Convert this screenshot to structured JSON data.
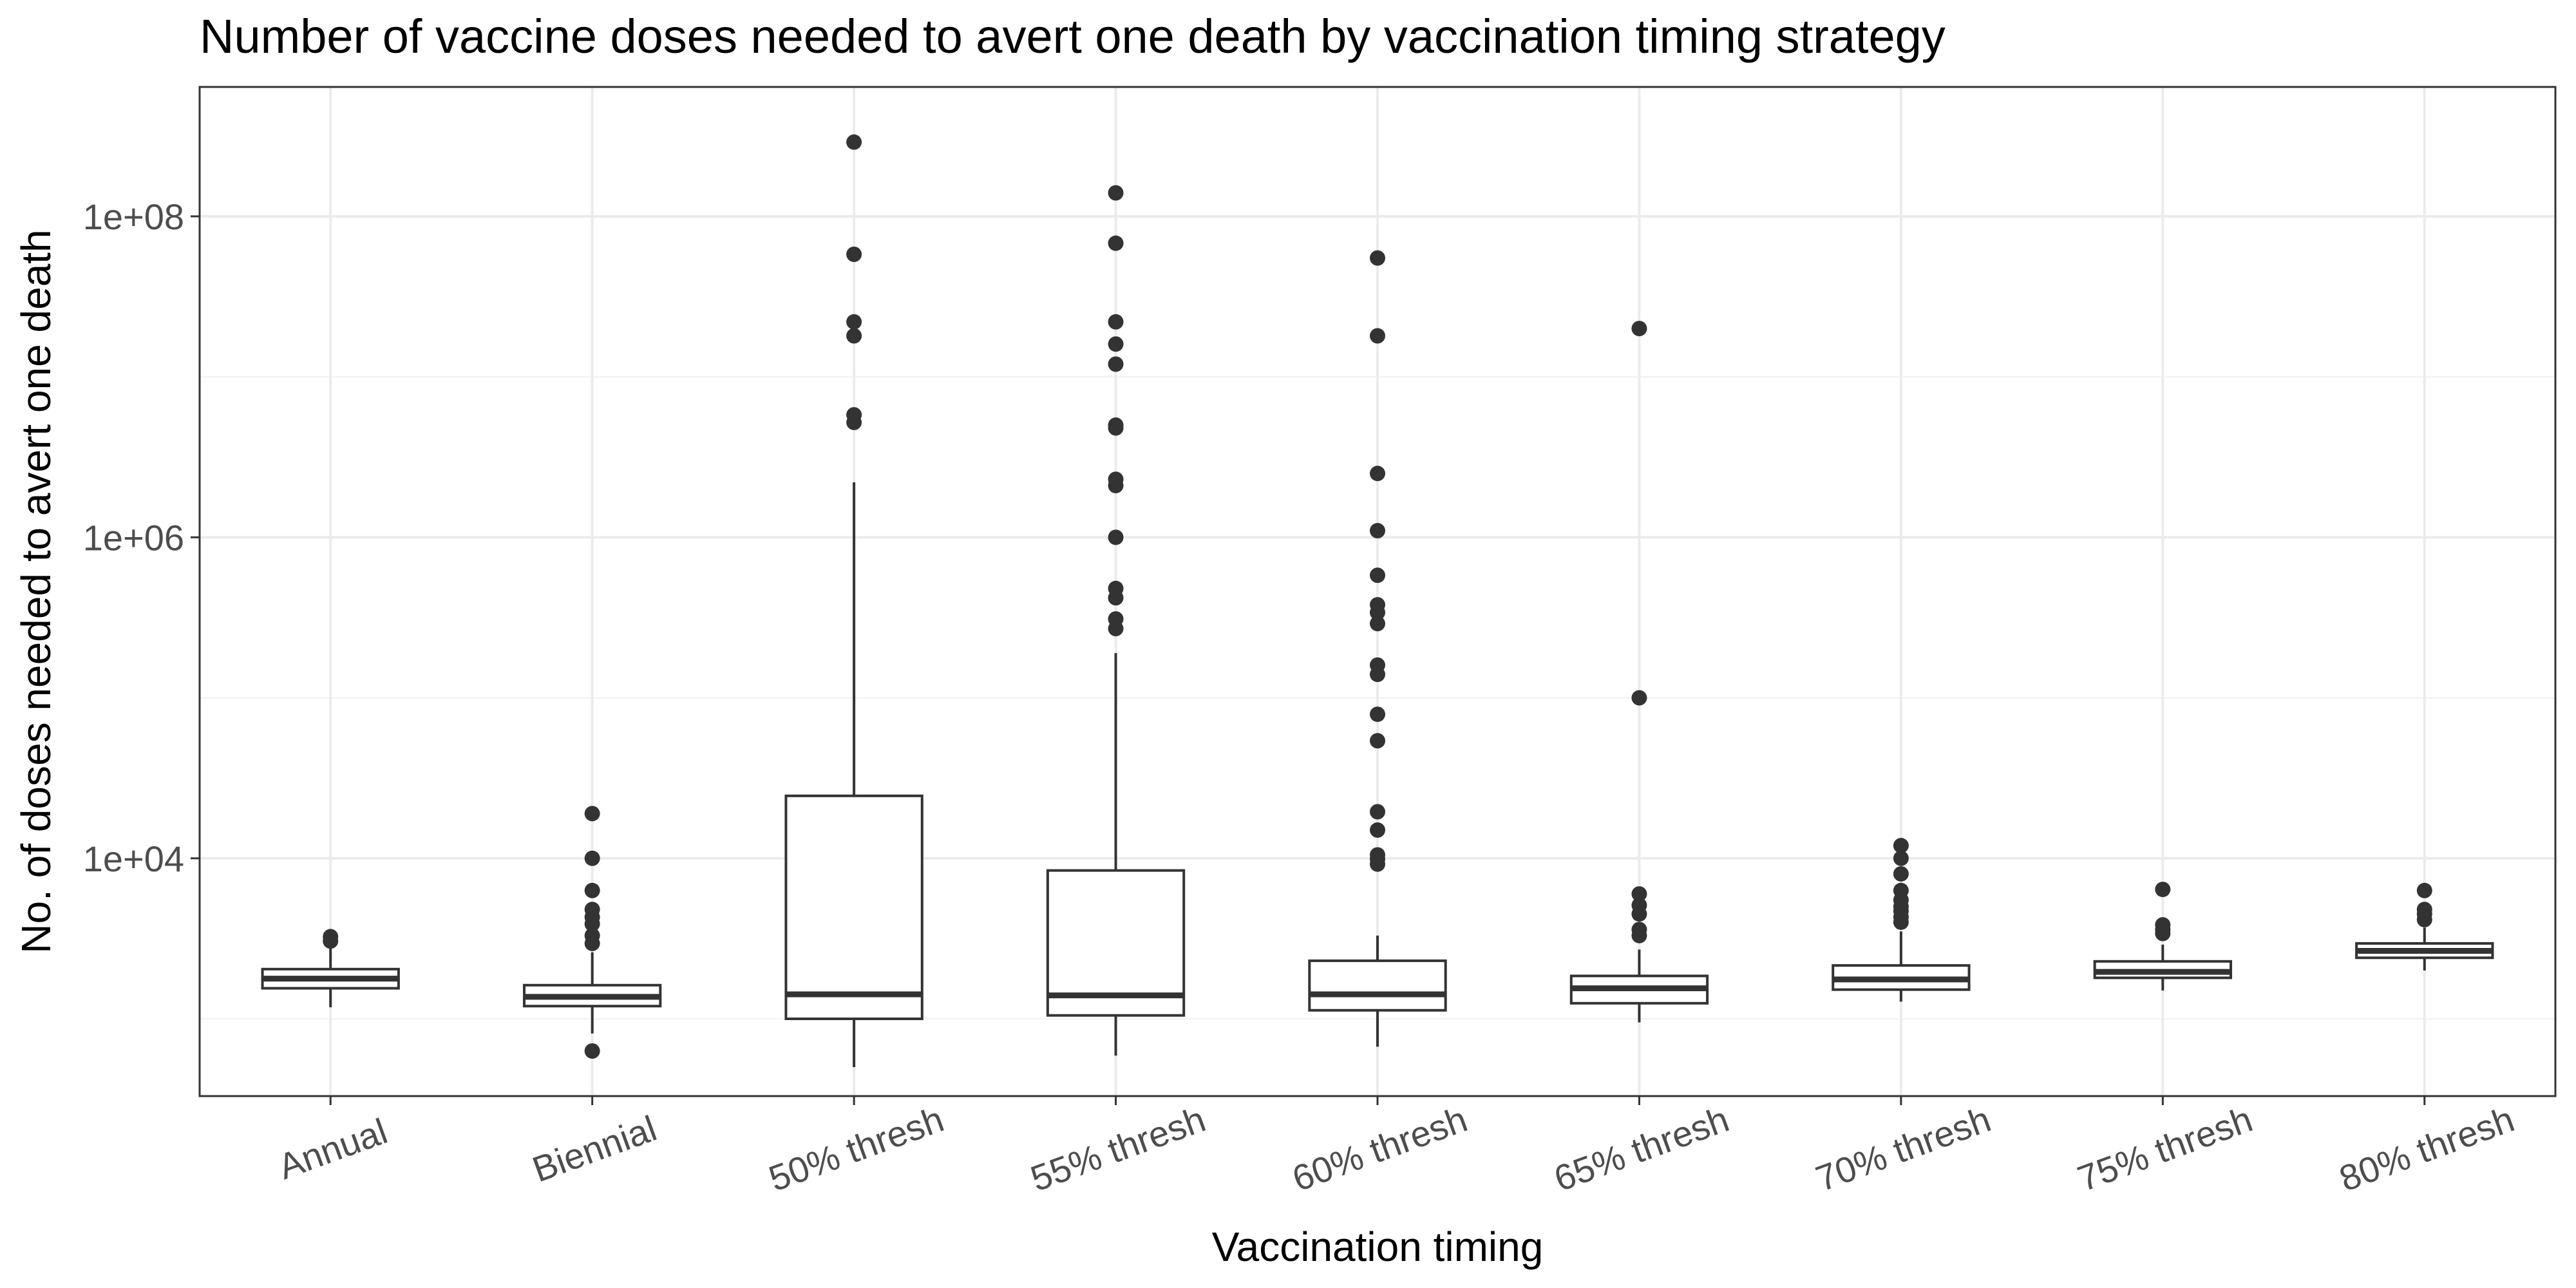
{
  "chart_data": {
    "type": "box",
    "title": "Number of vaccine doses needed to avert one death by vaccination timing strategy",
    "xlabel": "Vaccination timing",
    "ylabel": "No. of doses needed to avert one death",
    "y_scale": "log10",
    "ylim": [
      330,
      640000000
    ],
    "y_ticks": [
      {
        "value": 10000,
        "label": "1e+04"
      },
      {
        "value": 1000000,
        "label": "1e+06"
      },
      {
        "value": 100000000,
        "label": "1e+08"
      }
    ],
    "grid": true,
    "categories": [
      "Annual",
      "Biennial",
      "50% thresh",
      "55% thresh",
      "60% thresh",
      "65% thresh",
      "70% thresh",
      "75% thresh",
      "80% thresh"
    ],
    "boxes": [
      {
        "category": "Annual",
        "whisker_low": 1180,
        "q1": 1550,
        "median": 1780,
        "q3": 2040,
        "whisker_high": 2750,
        "outliers": [
          3050,
          3250
        ]
      },
      {
        "category": "Biennial",
        "whisker_low": 810,
        "q1": 1200,
        "median": 1370,
        "q3": 1620,
        "whisker_high": 2600,
        "outliers": [
          630,
          2950,
          3300,
          3900,
          4300,
          4800,
          6300,
          10000,
          19000
        ]
      },
      {
        "category": "50% thresh",
        "whisker_low": 500,
        "q1": 1000,
        "median": 1420,
        "q3": 24500,
        "whisker_high": 2200000,
        "outliers": [
          5200000,
          5800000,
          18000000,
          22000000,
          58000000,
          290000000
        ]
      },
      {
        "category": "55% thresh",
        "whisker_low": 590,
        "q1": 1050,
        "median": 1400,
        "q3": 8400,
        "whisker_high": 190000,
        "outliers": [
          270000,
          310000,
          420000,
          480000,
          1000000,
          2100000,
          2300000,
          4800000,
          5000000,
          12000000,
          16000000,
          22000000,
          68000000,
          140000000
        ]
      },
      {
        "category": "60% thresh",
        "whisker_low": 670,
        "q1": 1130,
        "median": 1420,
        "q3": 2300,
        "whisker_high": 3300,
        "outliers": [
          9200,
          9900,
          10500,
          15000,
          19500,
          54000,
          79000,
          140000,
          160000,
          290000,
          340000,
          380000,
          580000,
          1100000,
          2500000,
          18000000,
          55000000
        ]
      },
      {
        "category": "65% thresh",
        "whisker_low": 950,
        "q1": 1250,
        "median": 1550,
        "q3": 1850,
        "whisker_high": 2700,
        "outliers": [
          3300,
          3600,
          4500,
          5100,
          6000,
          100000,
          20000000
        ]
      },
      {
        "category": "70% thresh",
        "whisker_low": 1280,
        "q1": 1520,
        "median": 1760,
        "q3": 2150,
        "whisker_high": 3500,
        "outliers": [
          4000,
          4300,
          4700,
          5000,
          5500,
          6300,
          8000,
          10000,
          12000
        ]
      },
      {
        "category": "75% thresh",
        "whisker_low": 1500,
        "q1": 1800,
        "median": 1960,
        "q3": 2280,
        "whisker_high": 2900,
        "outliers": [
          3400,
          3600,
          3850,
          6400
        ]
      },
      {
        "category": "80% thresh",
        "whisker_low": 2000,
        "q1": 2400,
        "median": 2650,
        "q3": 2950,
        "whisker_high": 3700,
        "outliers": [
          4150,
          4500,
          4800,
          6300
        ]
      }
    ]
  }
}
